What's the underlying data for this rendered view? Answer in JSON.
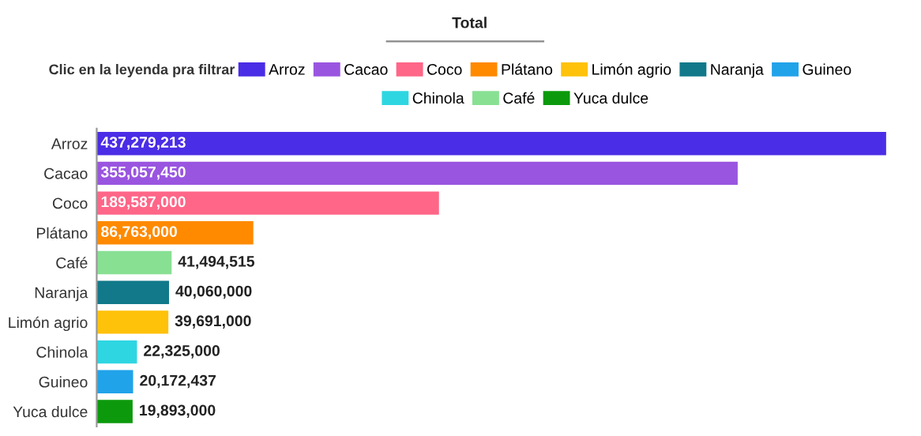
{
  "chart_data": {
    "type": "bar",
    "orientation": "horizontal",
    "subtitle": "Total",
    "legend_title": "Clic en la leyenda pra filtrar",
    "legend": "top",
    "tick_labels": "y",
    "grid": false,
    "categories": [
      "Arroz",
      "Cacao",
      "Coco",
      "Plátano",
      "Café",
      "Naranja",
      "Limón agrio",
      "Chinola",
      "Guineo",
      "Yuca dulce"
    ],
    "series": [
      {
        "name": "Arroz",
        "color": "#4a2de6",
        "values": [
          437279213,
          null,
          null,
          null,
          null,
          null,
          null,
          null,
          null,
          null
        ],
        "value_labels": [
          "437,279,213",
          null,
          null,
          null,
          null,
          null,
          null,
          null,
          null,
          null
        ]
      },
      {
        "name": "Cacao",
        "color": "#9a55e0",
        "values": [
          null,
          355057450,
          null,
          null,
          null,
          null,
          null,
          null,
          null,
          null
        ],
        "value_labels": [
          null,
          "355,057,450",
          null,
          null,
          null,
          null,
          null,
          null,
          null,
          null
        ]
      },
      {
        "name": "Coco",
        "color": "#ff6688",
        "values": [
          null,
          null,
          189587000,
          null,
          null,
          null,
          null,
          null,
          null,
          null
        ],
        "value_labels": [
          null,
          null,
          "189,587,000",
          null,
          null,
          null,
          null,
          null,
          null,
          null
        ]
      },
      {
        "name": "Plátano",
        "color": "#ff8a00",
        "values": [
          null,
          null,
          null,
          86763000,
          null,
          null,
          null,
          null,
          null,
          null
        ],
        "value_labels": [
          null,
          null,
          null,
          "86,763,000",
          null,
          null,
          null,
          null,
          null,
          null
        ]
      },
      {
        "name": "Limón agrio",
        "color": "#ffc20a",
        "values": [
          null,
          null,
          null,
          null,
          null,
          null,
          39691000,
          null,
          null,
          null
        ],
        "value_labels": [
          null,
          null,
          null,
          null,
          null,
          null,
          "39,691,000",
          null,
          null,
          null
        ]
      },
      {
        "name": "Naranja",
        "color": "#11798a",
        "values": [
          null,
          null,
          null,
          null,
          null,
          40060000,
          null,
          null,
          null,
          null
        ],
        "value_labels": [
          null,
          null,
          null,
          null,
          null,
          "40,060,000",
          null,
          null,
          null,
          null
        ]
      },
      {
        "name": "Guineo",
        "color": "#21a3ea",
        "values": [
          null,
          null,
          null,
          null,
          null,
          null,
          null,
          null,
          20172437,
          null
        ],
        "value_labels": [
          null,
          null,
          null,
          null,
          null,
          null,
          null,
          null,
          "20,172,437",
          null
        ]
      },
      {
        "name": "Chinola",
        "color": "#2ed6e2",
        "values": [
          null,
          null,
          null,
          null,
          null,
          null,
          null,
          22325000,
          null,
          null
        ],
        "value_labels": [
          null,
          null,
          null,
          null,
          null,
          null,
          null,
          "22,325,000",
          null,
          null
        ]
      },
      {
        "name": "Café",
        "color": "#88e093",
        "values": [
          null,
          null,
          null,
          null,
          41494515,
          null,
          null,
          null,
          null,
          null
        ],
        "value_labels": [
          null,
          null,
          null,
          null,
          "41,494,515",
          null,
          null,
          null,
          null,
          null
        ]
      },
      {
        "name": "Yuca dulce",
        "color": "#0c9a0c",
        "values": [
          null,
          null,
          null,
          null,
          null,
          null,
          null,
          null,
          null,
          19893000
        ],
        "value_labels": [
          null,
          null,
          null,
          null,
          null,
          null,
          null,
          null,
          null,
          "19,893,000"
        ]
      }
    ]
  }
}
